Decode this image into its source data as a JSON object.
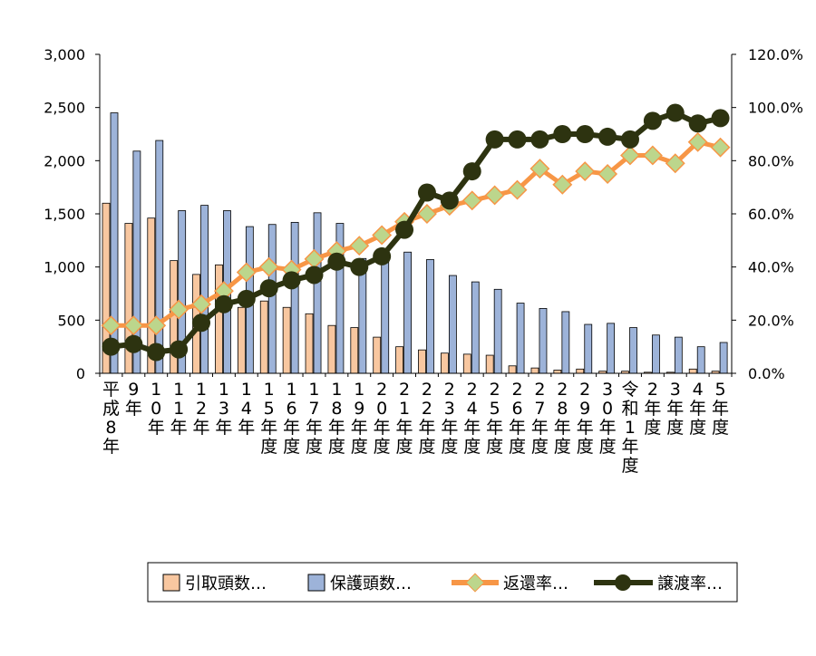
{
  "chart_data": {
    "type": "bar",
    "categories": [
      "平成8年",
      "9年",
      "10年",
      "11年",
      "12年",
      "13年",
      "14年",
      "15年度",
      "16年度",
      "17年度",
      "18年度",
      "19年度",
      "20年度",
      "21年度",
      "22年度",
      "23年度",
      "24年度",
      "25年度",
      "26年度",
      "27年度",
      "28年度",
      "29年度",
      "30年度",
      "令和1年度",
      "2年度",
      "3年度",
      "4年度",
      "5年度"
    ],
    "series": [
      {
        "name": "引取頭数…",
        "kind": "bar",
        "axis": "left",
        "color": "#f8c7a0",
        "values": [
          1600,
          1410,
          1460,
          1060,
          930,
          1020,
          620,
          680,
          620,
          560,
          450,
          430,
          340,
          250,
          220,
          190,
          180,
          170,
          70,
          50,
          30,
          40,
          20,
          20,
          10,
          10,
          40,
          20
        ]
      },
      {
        "name": "保護頭数…",
        "kind": "bar",
        "axis": "left",
        "color": "#9db3d9",
        "values": [
          2450,
          2090,
          2190,
          1530,
          1580,
          1530,
          1380,
          1400,
          1420,
          1510,
          1410,
          1080,
          1170,
          1140,
          1070,
          920,
          860,
          790,
          660,
          610,
          580,
          460,
          470,
          430,
          360,
          340,
          250,
          290
        ]
      },
      {
        "name": "返還率…",
        "kind": "line",
        "axis": "right",
        "color": "#f79646",
        "marker_color": "#bcd68c",
        "values": [
          18,
          18,
          18,
          24,
          26,
          31,
          38,
          40,
          39,
          43,
          46,
          48,
          52,
          57,
          60,
          63,
          65,
          67,
          69,
          77,
          71,
          76,
          75,
          82,
          82,
          79,
          87,
          85
        ]
      },
      {
        "name": "譲渡率…",
        "kind": "line",
        "axis": "right",
        "color": "#2d3310",
        "values": [
          10,
          11,
          8,
          9,
          19,
          26,
          28,
          32,
          35,
          37,
          42,
          40,
          44,
          54,
          68,
          65,
          76,
          88,
          88,
          88,
          90,
          90,
          89,
          88,
          95,
          98,
          94,
          96
        ]
      }
    ],
    "left_axis": {
      "ylim": [
        0,
        3000
      ],
      "ticks": [
        "0",
        "500",
        "1,000",
        "1,500",
        "2,000",
        "2,500",
        "3,000"
      ]
    },
    "right_axis": {
      "ylim": [
        0,
        120
      ],
      "ticks": [
        "0.0%",
        "20.0%",
        "40.0%",
        "60.0%",
        "80.0%",
        "100.0%",
        "120.0%"
      ]
    },
    "grid": false,
    "legend": "bottom"
  }
}
